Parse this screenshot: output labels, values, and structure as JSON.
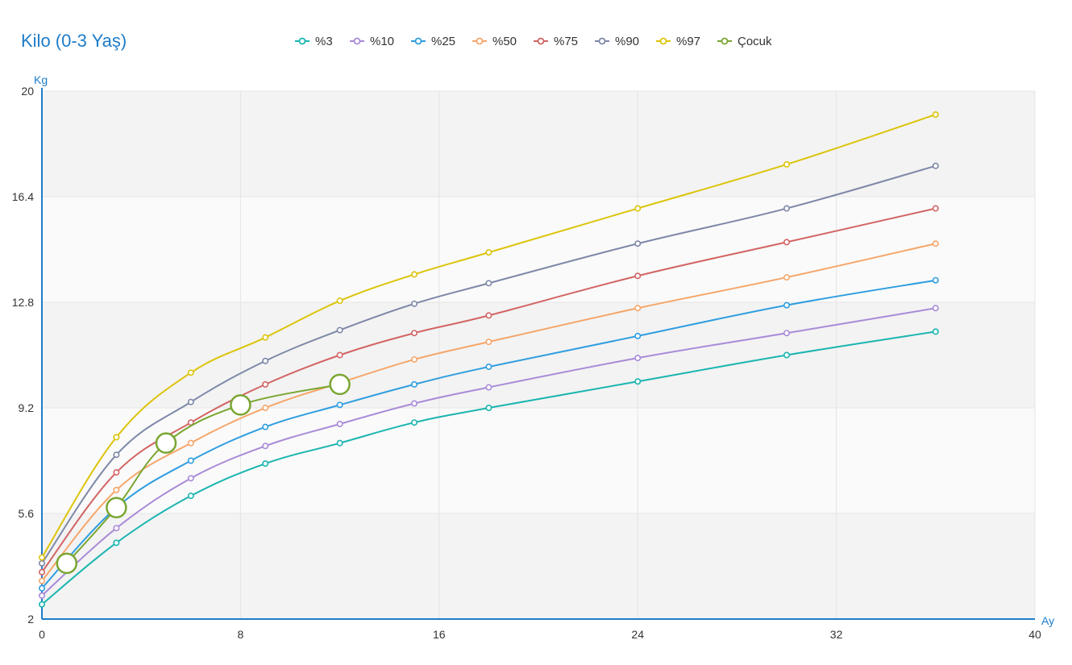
{
  "title": "Kilo (0-3 Yaş)",
  "chart_data": {
    "type": "line",
    "title": "Kilo (0-3 Yaş)",
    "ylabel": "Kg",
    "xlabel": "Ay",
    "xlim": [
      0,
      40
    ],
    "ylim": [
      2,
      20
    ],
    "xticks": [
      0,
      8,
      16,
      24,
      32,
      40
    ],
    "yticks": [
      2,
      5.6,
      9.2,
      12.8,
      16.4,
      20
    ],
    "x": [
      0,
      3,
      6,
      9,
      12,
      15,
      18,
      24,
      30,
      36
    ],
    "grid": true,
    "legend_position": "top",
    "series": [
      {
        "name": "%3",
        "color": "#1bb5b0",
        "values": [
          2.5,
          4.6,
          6.2,
          7.3,
          8.0,
          8.7,
          9.2,
          10.1,
          11.0,
          11.8
        ]
      },
      {
        "name": "%10",
        "color": "#a98bd8",
        "values": [
          2.8,
          5.1,
          6.8,
          7.9,
          8.65,
          9.35,
          9.9,
          10.9,
          11.75,
          12.6
        ]
      },
      {
        "name": "%25",
        "color": "#2f9ee0",
        "values": [
          3.05,
          5.8,
          7.4,
          8.55,
          9.3,
          10.0,
          10.6,
          11.65,
          12.7,
          13.55
        ]
      },
      {
        "name": "%50",
        "color": "#f5a66a",
        "values": [
          3.3,
          6.4,
          8.0,
          9.2,
          10.05,
          10.85,
          11.45,
          12.6,
          13.65,
          14.8
        ]
      },
      {
        "name": "%75",
        "color": "#d36464",
        "values": [
          3.6,
          7.0,
          8.7,
          10.0,
          11.0,
          11.75,
          12.35,
          13.7,
          14.85,
          16.0
        ]
      },
      {
        "name": "%90",
        "color": "#7e88a8",
        "values": [
          3.9,
          7.6,
          9.4,
          10.8,
          11.85,
          12.75,
          13.45,
          14.8,
          16.0,
          17.45
        ]
      },
      {
        "name": "%97",
        "color": "#dcc40a",
        "values": [
          4.1,
          8.2,
          10.4,
          11.6,
          12.85,
          13.75,
          14.5,
          16.0,
          17.5,
          19.2
        ]
      },
      {
        "name": "Çocuk",
        "color": "#7aa632",
        "x": [
          1,
          3,
          5,
          8,
          12
        ],
        "values": [
          3.9,
          5.8,
          8.0,
          9.3,
          10.0
        ]
      }
    ]
  }
}
